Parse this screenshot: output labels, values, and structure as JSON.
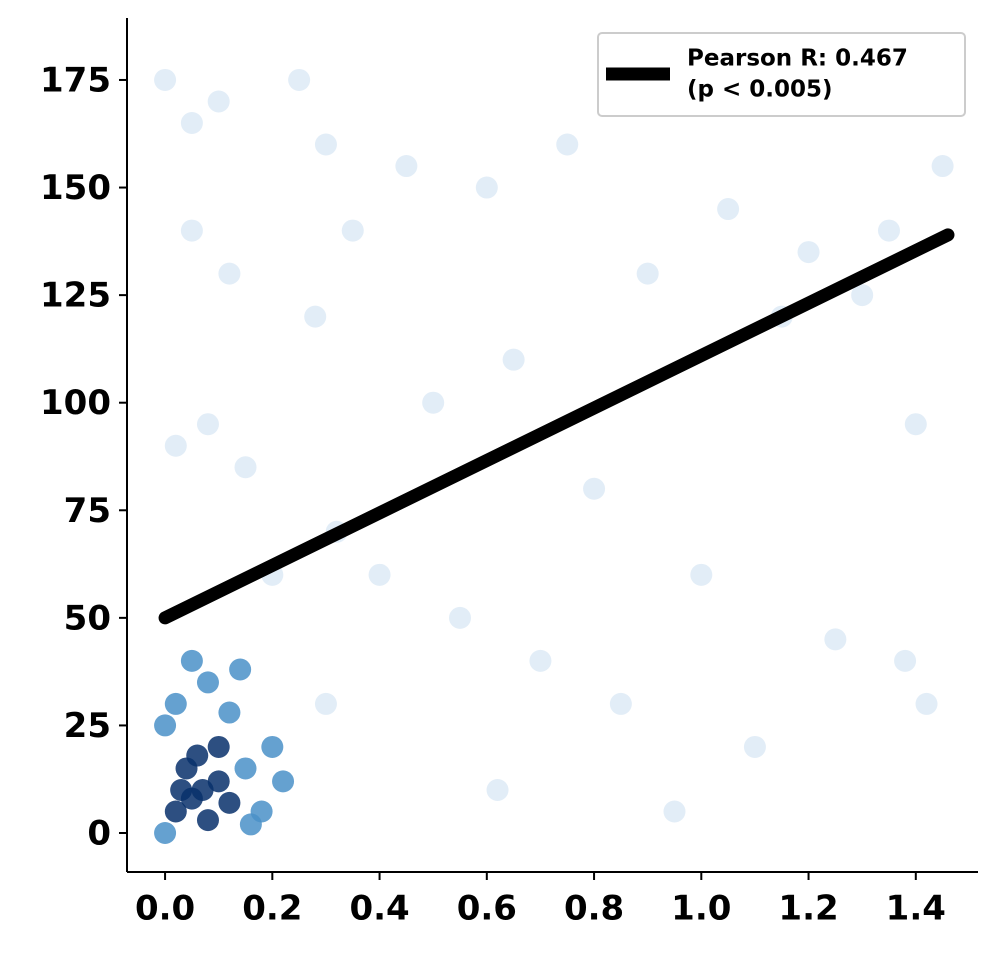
{
  "chart_data": {
    "type": "scatter",
    "xlim": [
      -0.071,
      1.516
    ],
    "ylim": [
      -9.06,
      189.4
    ],
    "xticks": [
      {
        "value": 0,
        "label": "0.0"
      },
      0.2,
      0.4,
      0.6,
      0.8,
      {
        "value": 1,
        "label": "1.0"
      },
      1.2,
      1.4
    ],
    "yticks": [
      0,
      25,
      50,
      75,
      100,
      125,
      150,
      175
    ],
    "legend": "upper right",
    "series": [
      {
        "color": "#c6dbef",
        "x": [
          0.0,
          0.05,
          0.1,
          0.25,
          0.3,
          0.02,
          0.08,
          0.15,
          0.28,
          0.35,
          0.45,
          0.6,
          0.75,
          0.9,
          1.05,
          1.2,
          1.35,
          1.45,
          0.5,
          0.65,
          0.8,
          1.0,
          1.15,
          1.3,
          1.4,
          0.4,
          0.55,
          0.7,
          0.85,
          1.1,
          1.25,
          0.2,
          0.32,
          0.62,
          0.95,
          1.42,
          0.12,
          0.05,
          0.3,
          1.38
        ],
        "y": [
          175,
          165,
          170,
          175,
          160,
          90,
          95,
          85,
          120,
          140,
          155,
          150,
          160,
          130,
          145,
          135,
          140,
          155,
          100,
          110,
          80,
          60,
          120,
          125,
          95,
          60,
          50,
          40,
          30,
          20,
          45,
          60,
          70,
          10,
          5,
          30,
          130,
          140,
          30,
          40
        ]
      },
      {
        "color": "#4a90c8",
        "x": [
          0.0,
          0.15,
          0.18,
          0.02,
          0.12,
          0.2,
          0.08,
          0.16,
          0.0,
          0.22,
          0.05,
          0.14
        ],
        "y": [
          25,
          15,
          5,
          30,
          28,
          20,
          35,
          2,
          0,
          12,
          40,
          38
        ]
      },
      {
        "color": "#08306b",
        "x": [
          0.02,
          0.05,
          0.07,
          0.1,
          0.04,
          0.08,
          0.12,
          0.06,
          0.03,
          0.1
        ],
        "y": [
          5,
          8,
          10,
          12,
          15,
          3,
          7,
          18,
          10,
          20
        ]
      },
      {
        "type": "line",
        "name": "Pearson R: 0.467\n(p < 0.005)",
        "color": "#000000",
        "x": [
          0,
          1.46
        ],
        "y": [
          50,
          139
        ]
      }
    ]
  }
}
